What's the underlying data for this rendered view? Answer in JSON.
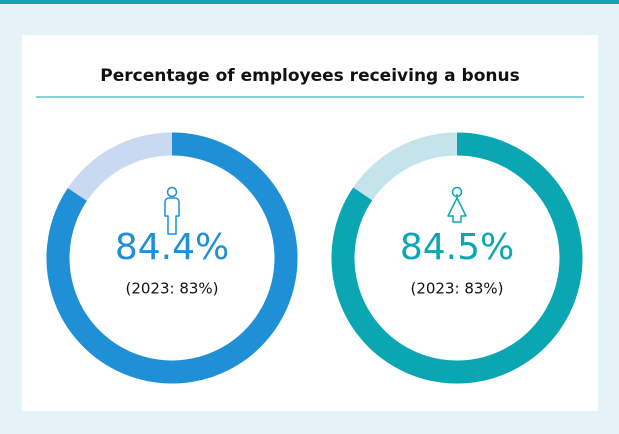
{
  "title": "Percentage of employees receiving a bonus",
  "chart_data": [
    {
      "type": "donut",
      "values": [
        84.4
      ],
      "value_labels": [
        "84.4%"
      ],
      "ylim": [
        0,
        100
      ],
      "color": "#1f8fd6",
      "track_color": "#c9d9f2",
      "annotation": "(2023: 83%)"
    },
    {
      "type": "donut",
      "values": [
        84.5
      ],
      "value_labels": [
        "84.5%"
      ],
      "ylim": [
        0,
        100
      ],
      "color": "#0aa7b2",
      "track_color": "#c4e3ea",
      "annotation": "(2023: 83%)"
    }
  ]
}
